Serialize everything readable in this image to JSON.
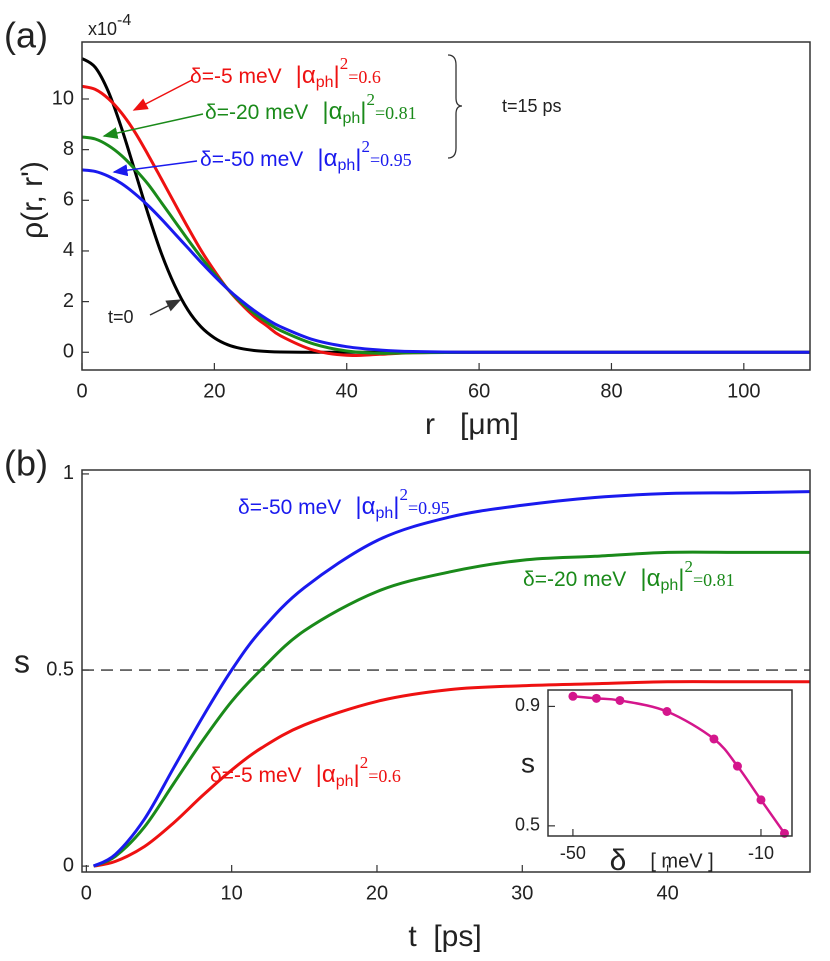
{
  "chart_data": [
    {
      "type": "line",
      "panel_label": "(a)",
      "y_label": "ρ(r, r')",
      "x_label": "r   [μm]",
      "y_multiplier": "x10",
      "y_exponent": "-4",
      "xlim": [
        0,
        110
      ],
      "ylim": [
        -0.7,
        12.25
      ],
      "xticks": [
        0,
        20,
        40,
        60,
        80,
        100
      ],
      "yticks": [
        0,
        2,
        4,
        6,
        8,
        10
      ],
      "x": [
        0,
        2,
        4,
        6,
        8,
        10,
        12,
        14,
        16,
        18,
        20,
        22,
        24,
        26,
        28,
        30,
        35,
        40,
        45,
        50,
        60,
        80,
        110
      ],
      "series": [
        {
          "color": "#000000",
          "values": [
            11.6,
            11.25,
            10.28,
            8.83,
            7.15,
            5.45,
            3.9,
            2.64,
            1.67,
            1.0,
            0.57,
            0.3,
            0.15,
            0.07,
            0.03,
            0.01,
            0,
            0,
            0,
            0,
            0,
            0,
            0
          ]
        },
        {
          "color": "#ee1111",
          "values": [
            10.5,
            10.38,
            10.01,
            9.44,
            8.69,
            7.79,
            6.84,
            5.88,
            4.93,
            4.02,
            3.22,
            2.5,
            1.92,
            1.42,
            1.03,
            0.65,
            0.08,
            -0.12,
            -0.08,
            -0.02,
            0,
            0,
            0
          ]
        },
        {
          "color": "#1a8a1a",
          "values": [
            8.5,
            8.42,
            8.16,
            7.76,
            7.23,
            6.63,
            5.91,
            5.18,
            4.45,
            3.75,
            3.1,
            2.5,
            1.98,
            1.54,
            1.17,
            0.86,
            0.33,
            0.05,
            -0.04,
            -0.02,
            0,
            0,
            0
          ]
        },
        {
          "color": "#1a1aee",
          "values": [
            7.2,
            7.14,
            6.95,
            6.66,
            6.26,
            5.79,
            5.26,
            4.69,
            4.12,
            3.55,
            3.01,
            2.5,
            2.05,
            1.65,
            1.3,
            1.01,
            0.49,
            0.22,
            0.09,
            0.03,
            0,
            0,
            0
          ]
        }
      ],
      "annotations": [
        {
          "color": "#ee1111",
          "delta": "δ=-5 meV",
          "abs": "|α",
          "sub": "ph",
          "close": "|",
          "sup": "2",
          "eq": "=0.6"
        },
        {
          "color": "#1a8a1a",
          "delta": "δ=-20 meV",
          "abs": "|α",
          "sub": "ph",
          "close": "|",
          "sup": "2",
          "eq": "=0.81"
        },
        {
          "color": "#1a1aee",
          "delta": "δ=-50 meV",
          "abs": "|α",
          "sub": "ph",
          "close": "|",
          "sup": "2",
          "eq": "=0.95"
        }
      ],
      "bracket_label": "t=15 ps",
      "initial_label": "t=0"
    },
    {
      "type": "line",
      "panel_label": "(b)",
      "y_label": "s",
      "x_label": "t  [ps]",
      "xlim": [
        -0.3,
        49.8
      ],
      "ylim": [
        -0.015,
        1.01
      ],
      "xticks": [
        0,
        10,
        20,
        30,
        40
      ],
      "yticks": [
        0,
        0.5,
        1
      ],
      "reference_line": 0.5,
      "x": [
        0.5,
        2,
        4,
        6,
        8,
        10,
        12,
        15,
        20,
        25,
        30,
        35,
        40,
        45,
        49.8
      ],
      "series": [
        {
          "color": "#ee1111",
          "values": [
            0,
            0.012,
            0.05,
            0.11,
            0.18,
            0.245,
            0.3,
            0.36,
            0.42,
            0.45,
            0.46,
            0.465,
            0.47,
            0.47,
            0.47
          ]
        },
        {
          "color": "#1a8a1a",
          "values": [
            0,
            0.025,
            0.1,
            0.21,
            0.32,
            0.42,
            0.5,
            0.6,
            0.7,
            0.75,
            0.78,
            0.79,
            0.8,
            0.8,
            0.8
          ]
        },
        {
          "color": "#1a1aee",
          "values": [
            0,
            0.03,
            0.12,
            0.25,
            0.38,
            0.5,
            0.6,
            0.71,
            0.83,
            0.89,
            0.92,
            0.94,
            0.95,
            0.952,
            0.955
          ]
        }
      ],
      "annotations": [
        {
          "color": "#1a1aee",
          "delta": "δ=-50 meV",
          "abs": "|α",
          "sub": "ph",
          "close": "|",
          "sup": "2",
          "eq": "=0.95"
        },
        {
          "color": "#1a8a1a",
          "delta": "δ=-20 meV",
          "abs": "|α",
          "sub": "ph",
          "close": "|",
          "sup": "2",
          "eq": "=0.81"
        },
        {
          "color": "#ee1111",
          "delta": "δ=-5 meV",
          "abs": "|α",
          "sub": "ph",
          "close": "|",
          "sup": "2",
          "eq": "=0.6"
        }
      ]
    },
    {
      "type": "line",
      "markers": true,
      "y_label": "s",
      "x_label": "δ",
      "x_unit": "[ meV ]",
      "color": "#d4168c",
      "xlim": [
        -55.3,
        -3.4
      ],
      "ylim": [
        0.466,
        0.955
      ],
      "xticks": [
        -50,
        -10
      ],
      "yticks": [
        0.5,
        0.9
      ],
      "x": [
        -50,
        -45,
        -40,
        -30,
        -20,
        -15,
        -10,
        -5
      ],
      "values": [
        0.934,
        0.927,
        0.92,
        0.883,
        0.791,
        0.7,
        0.587,
        0.475
      ]
    }
  ]
}
